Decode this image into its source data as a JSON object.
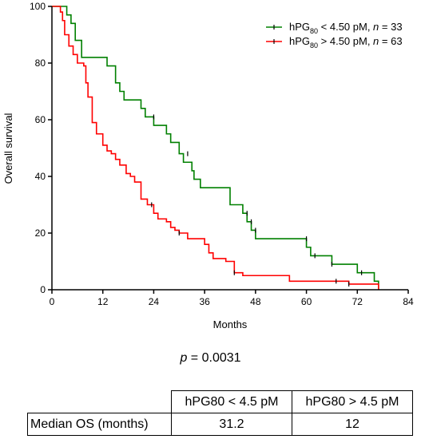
{
  "chart_data": {
    "type": "line",
    "subtype": "kaplan-meier",
    "xlabel": "Months",
    "ylabel": "Overall survival",
    "xlim": [
      0,
      84
    ],
    "ylim": [
      0,
      100
    ],
    "xticks": [
      0,
      12,
      24,
      36,
      48,
      60,
      72,
      84
    ],
    "yticks": [
      0,
      20,
      40,
      60,
      80,
      100
    ],
    "grid": false,
    "legend_position": "top-right",
    "series": [
      {
        "name_parts": [
          "hPG",
          "80",
          " < 4.50 pM, ",
          "n",
          " = 33"
        ],
        "color": "#008000",
        "steps": [
          [
            0,
            100
          ],
          [
            3.5,
            97
          ],
          [
            4.5,
            94
          ],
          [
            5.5,
            88
          ],
          [
            7,
            82
          ],
          [
            13,
            79
          ],
          [
            15,
            73
          ],
          [
            16,
            70
          ],
          [
            17,
            67
          ],
          [
            21,
            64
          ],
          [
            22,
            61
          ],
          [
            24,
            58
          ],
          [
            27,
            55
          ],
          [
            28,
            52
          ],
          [
            30,
            48
          ],
          [
            31,
            45
          ],
          [
            33,
            42
          ],
          [
            33.5,
            39
          ],
          [
            35,
            36
          ],
          [
            42,
            30
          ],
          [
            45,
            27
          ],
          [
            46,
            24
          ],
          [
            47,
            21
          ],
          [
            48,
            18
          ],
          [
            60,
            15
          ],
          [
            61,
            12
          ],
          [
            66,
            9
          ],
          [
            72,
            6
          ],
          [
            76,
            3
          ],
          [
            77,
            0
          ]
        ],
        "censored": [
          [
            24,
            61
          ],
          [
            32,
            48
          ],
          [
            46,
            27
          ],
          [
            47,
            24
          ],
          [
            48,
            21
          ],
          [
            60,
            18
          ],
          [
            62,
            12
          ],
          [
            66,
            9
          ],
          [
            73,
            6
          ]
        ]
      },
      {
        "name_parts": [
          "hPG",
          "80",
          " > 4.50 pM, ",
          "n",
          " = 63"
        ],
        "color": "#ff0000",
        "steps": [
          [
            0,
            100
          ],
          [
            2,
            98
          ],
          [
            2.5,
            95
          ],
          [
            3,
            90
          ],
          [
            4,
            86
          ],
          [
            5,
            83
          ],
          [
            6,
            80
          ],
          [
            7.5,
            79
          ],
          [
            8,
            73
          ],
          [
            8.5,
            68
          ],
          [
            9.5,
            59
          ],
          [
            10.5,
            55
          ],
          [
            12,
            51
          ],
          [
            13,
            49
          ],
          [
            14,
            48
          ],
          [
            15,
            46
          ],
          [
            16,
            44
          ],
          [
            17.5,
            41
          ],
          [
            18.5,
            40
          ],
          [
            19.5,
            38
          ],
          [
            21,
            32
          ],
          [
            22.5,
            30
          ],
          [
            24,
            27
          ],
          [
            25,
            25
          ],
          [
            27,
            24
          ],
          [
            28,
            22
          ],
          [
            29,
            21
          ],
          [
            30,
            20
          ],
          [
            32,
            18
          ],
          [
            36,
            16
          ],
          [
            37,
            13
          ],
          [
            38,
            11
          ],
          [
            41,
            10
          ],
          [
            43,
            6
          ],
          [
            45,
            5
          ],
          [
            52,
            5
          ],
          [
            56,
            3
          ],
          [
            68,
            3
          ],
          [
            70,
            2
          ],
          [
            77,
            0
          ]
        ],
        "censored": [
          [
            23.5,
            30
          ],
          [
            30,
            20
          ],
          [
            43,
            6
          ],
          [
            67,
            3
          ],
          [
            70,
            2
          ]
        ]
      }
    ]
  },
  "stats": {
    "p_label": "p",
    "p_rest": " = 0.0031"
  },
  "table": {
    "header": [
      "",
      "hPG80 < 4.5 pM",
      "hPG80 > 4.5 pM"
    ],
    "rows": [
      [
        "Median OS (months)",
        "31.2",
        "12"
      ]
    ]
  }
}
